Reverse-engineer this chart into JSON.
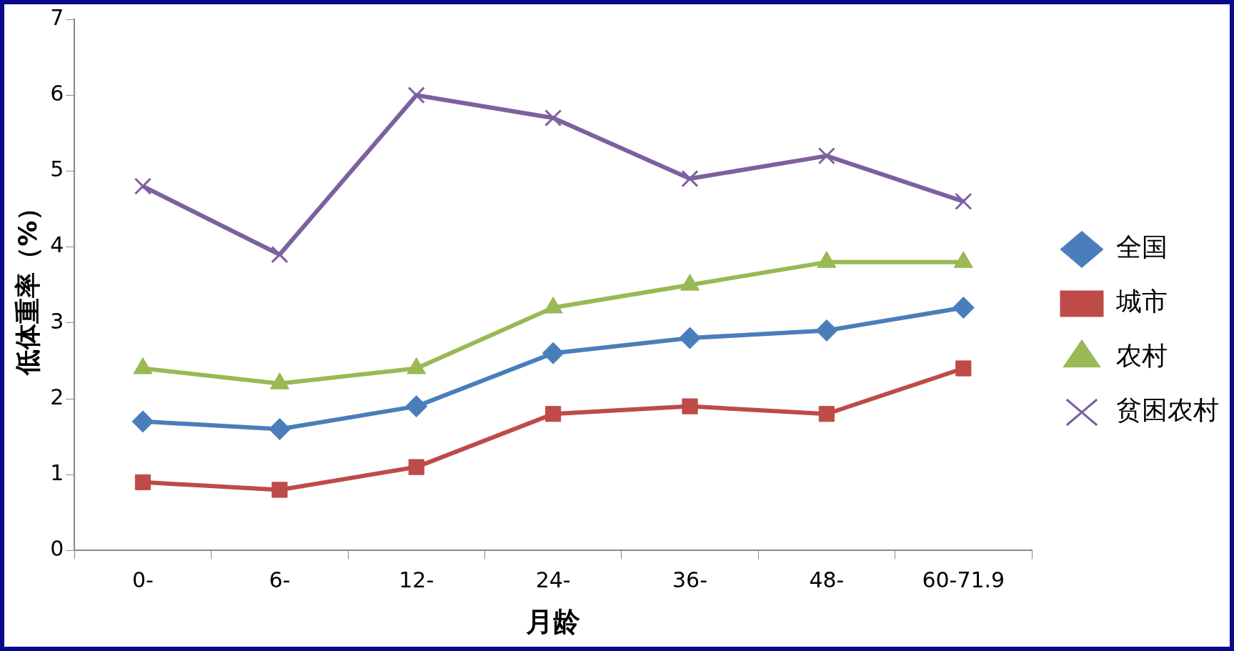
{
  "chart_data": {
    "type": "line",
    "xlabel": "月龄",
    "ylabel": "低体重率（%）",
    "categories": [
      "0-",
      "6-",
      "12-",
      "24-",
      "36-",
      "48-",
      "60-71.9"
    ],
    "series": [
      {
        "name": "全国",
        "color": "#4a7ebb",
        "marker": "diamond",
        "values": [
          1.7,
          1.6,
          1.9,
          2.6,
          2.8,
          2.9,
          3.2
        ]
      },
      {
        "name": "城市",
        "color": "#be4b48",
        "marker": "square",
        "values": [
          0.9,
          0.8,
          1.1,
          1.8,
          1.9,
          1.8,
          2.4
        ]
      },
      {
        "name": "农村",
        "color": "#98b954",
        "marker": "triangle",
        "values": [
          2.4,
          2.2,
          2.4,
          3.2,
          3.5,
          3.8,
          3.8
        ]
      },
      {
        "name": "贫困农村",
        "color": "#7d60a0",
        "marker": "cross",
        "values": [
          4.8,
          3.9,
          6.0,
          5.7,
          4.9,
          5.2,
          4.6
        ]
      }
    ],
    "ylim": [
      0,
      7
    ],
    "yticks": [
      0,
      1,
      2,
      3,
      4,
      5,
      6,
      7
    ],
    "grid": false,
    "legend": "right",
    "line_style": "solid"
  }
}
